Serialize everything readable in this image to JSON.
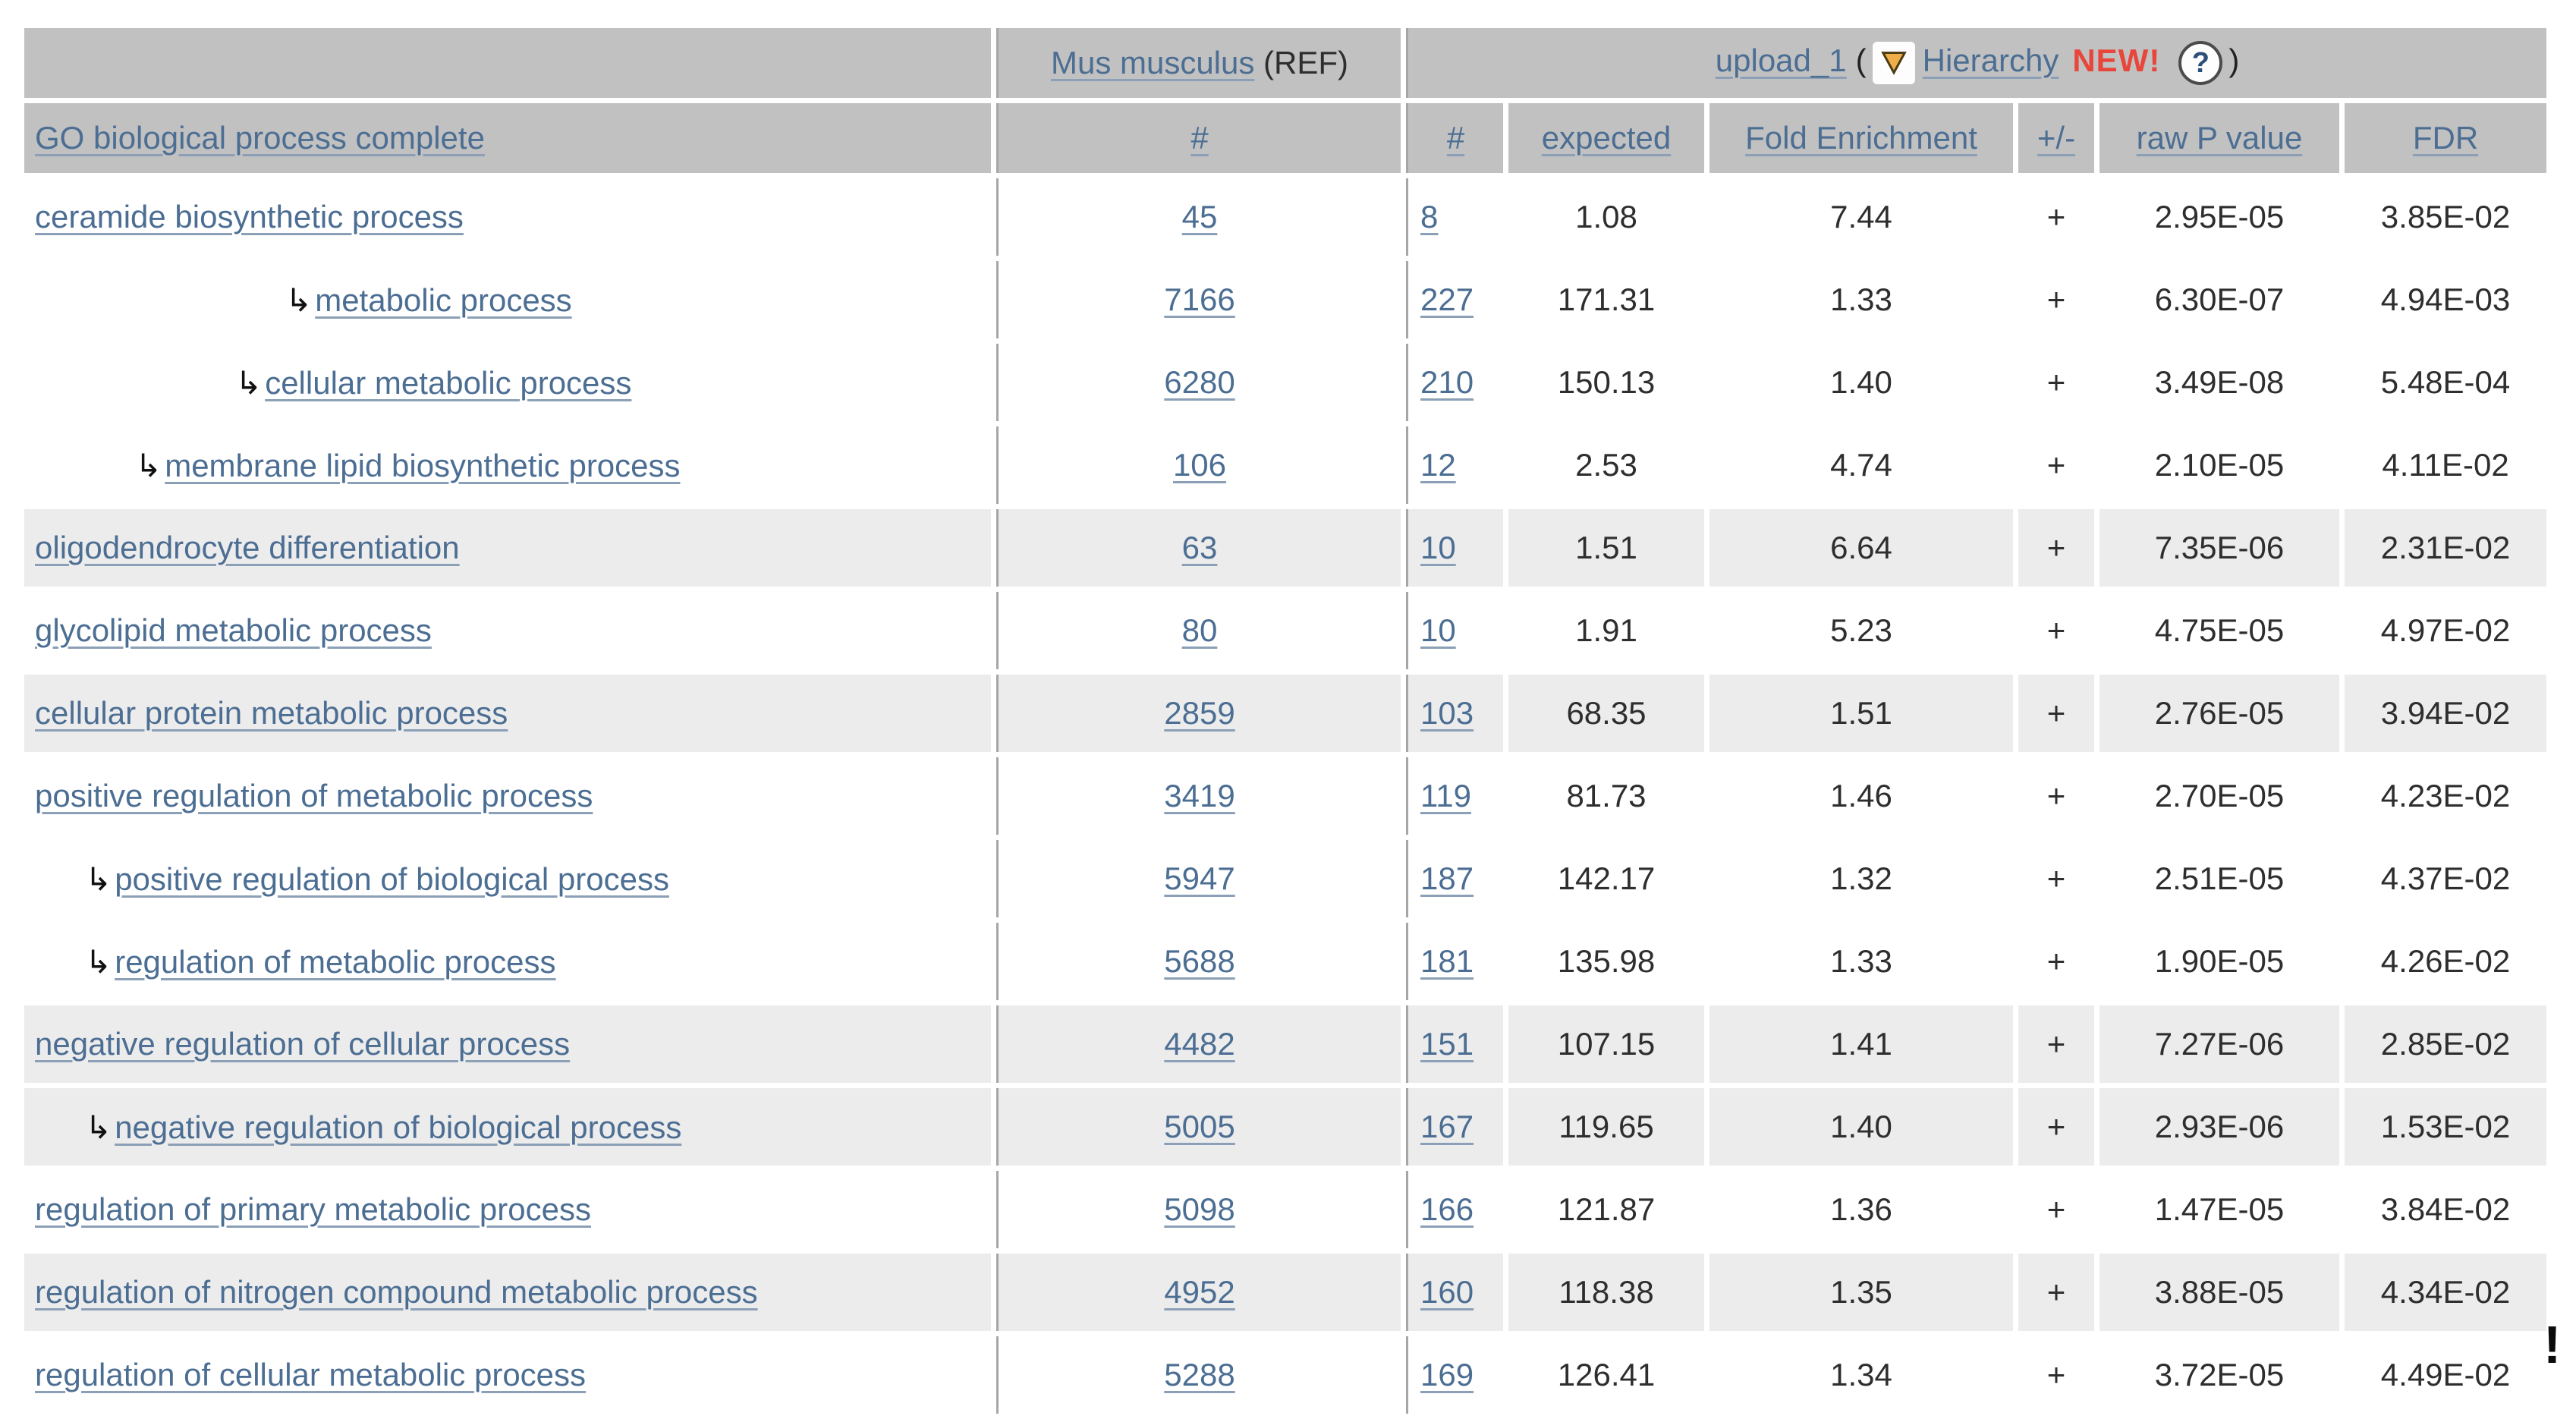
{
  "glyphs": {
    "hierarchy_arrow": "↳",
    "help": "?"
  },
  "header": {
    "ref_species_link": "Mus musculus",
    "ref_suffix": " (REF)",
    "upload_name": "upload_1",
    "open_paren": "(",
    "hierarchy_label": "Hierarchy",
    "new_badge": "NEW!",
    "close_paren": ")"
  },
  "columns": {
    "term": "GO biological process complete",
    "ref_count": "#",
    "count": "#",
    "expected": "expected",
    "fold": "Fold Enrichment",
    "plus_minus": "+/-",
    "raw_p": "raw P value",
    "fdr": "FDR"
  },
  "table": {
    "rows": [
      {
        "term": "ceramide biosynthetic process",
        "level": 0,
        "ref": "45",
        "n": "8",
        "expected": "1.08",
        "fold": "7.44",
        "sign": "+",
        "p": "2.95E-05",
        "fdr": "3.85E-02",
        "shade": false
      },
      {
        "term": "metabolic process",
        "level": 5,
        "ref": "7166",
        "n": "227",
        "expected": "171.31",
        "fold": "1.33",
        "sign": "+",
        "p": "6.30E-07",
        "fdr": "4.94E-03",
        "shade": false
      },
      {
        "term": "cellular metabolic process",
        "level": 4,
        "ref": "6280",
        "n": "210",
        "expected": "150.13",
        "fold": "1.40",
        "sign": "+",
        "p": "3.49E-08",
        "fdr": "5.48E-04",
        "shade": false
      },
      {
        "term": "membrane lipid biosynthetic process",
        "level": 2,
        "ref": "106",
        "n": "12",
        "expected": "2.53",
        "fold": "4.74",
        "sign": "+",
        "p": "2.10E-05",
        "fdr": "4.11E-02",
        "shade": false
      },
      {
        "term": "oligodendrocyte differentiation",
        "level": 0,
        "ref": "63",
        "n": "10",
        "expected": "1.51",
        "fold": "6.64",
        "sign": "+",
        "p": "7.35E-06",
        "fdr": "2.31E-02",
        "shade": true
      },
      {
        "term": "glycolipid metabolic process",
        "level": 0,
        "ref": "80",
        "n": "10",
        "expected": "1.91",
        "fold": "5.23",
        "sign": "+",
        "p": "4.75E-05",
        "fdr": "4.97E-02",
        "shade": false
      },
      {
        "term": "cellular protein metabolic process",
        "level": 0,
        "ref": "2859",
        "n": "103",
        "expected": "68.35",
        "fold": "1.51",
        "sign": "+",
        "p": "2.76E-05",
        "fdr": "3.94E-02",
        "shade": true
      },
      {
        "term": "positive regulation of metabolic process",
        "level": 0,
        "ref": "3419",
        "n": "119",
        "expected": "81.73",
        "fold": "1.46",
        "sign": "+",
        "p": "2.70E-05",
        "fdr": "4.23E-02",
        "shade": false
      },
      {
        "term": "positive regulation of biological process",
        "level": 1,
        "ref": "5947",
        "n": "187",
        "expected": "142.17",
        "fold": "1.32",
        "sign": "+",
        "p": "2.51E-05",
        "fdr": "4.37E-02",
        "shade": false
      },
      {
        "term": "regulation of metabolic process",
        "level": 1,
        "ref": "5688",
        "n": "181",
        "expected": "135.98",
        "fold": "1.33",
        "sign": "+",
        "p": "1.90E-05",
        "fdr": "4.26E-02",
        "shade": false
      },
      {
        "term": "negative regulation of cellular process",
        "level": 0,
        "ref": "4482",
        "n": "151",
        "expected": "107.15",
        "fold": "1.41",
        "sign": "+",
        "p": "7.27E-06",
        "fdr": "2.85E-02",
        "shade": true
      },
      {
        "term": "negative regulation of biological process",
        "level": 1,
        "ref": "5005",
        "n": "167",
        "expected": "119.65",
        "fold": "1.40",
        "sign": "+",
        "p": "2.93E-06",
        "fdr": "1.53E-02",
        "shade": true
      },
      {
        "term": "regulation of primary metabolic process",
        "level": 0,
        "ref": "5098",
        "n": "166",
        "expected": "121.87",
        "fold": "1.36",
        "sign": "+",
        "p": "1.47E-05",
        "fdr": "3.84E-02",
        "shade": false
      },
      {
        "term": "regulation of nitrogen compound metabolic process",
        "level": 0,
        "ref": "4952",
        "n": "160",
        "expected": "118.38",
        "fold": "1.35",
        "sign": "+",
        "p": "3.88E-05",
        "fdr": "4.34E-02",
        "shade": true
      },
      {
        "term": "regulation of cellular metabolic process",
        "level": 0,
        "ref": "5288",
        "n": "169",
        "expected": "126.41",
        "fold": "1.34",
        "sign": "+",
        "p": "3.72E-05",
        "fdr": "4.49E-02",
        "shade": false
      }
    ]
  },
  "stray": {
    "exclamation": "!"
  },
  "colors": {
    "header_bg": "#c1c1c1",
    "shade_row_bg": "#ececec",
    "link_blue": "#4c6e93",
    "new_red": "#e8463a",
    "divider": "#a6a6a6",
    "triangle_gold": "#f0ae4a"
  }
}
